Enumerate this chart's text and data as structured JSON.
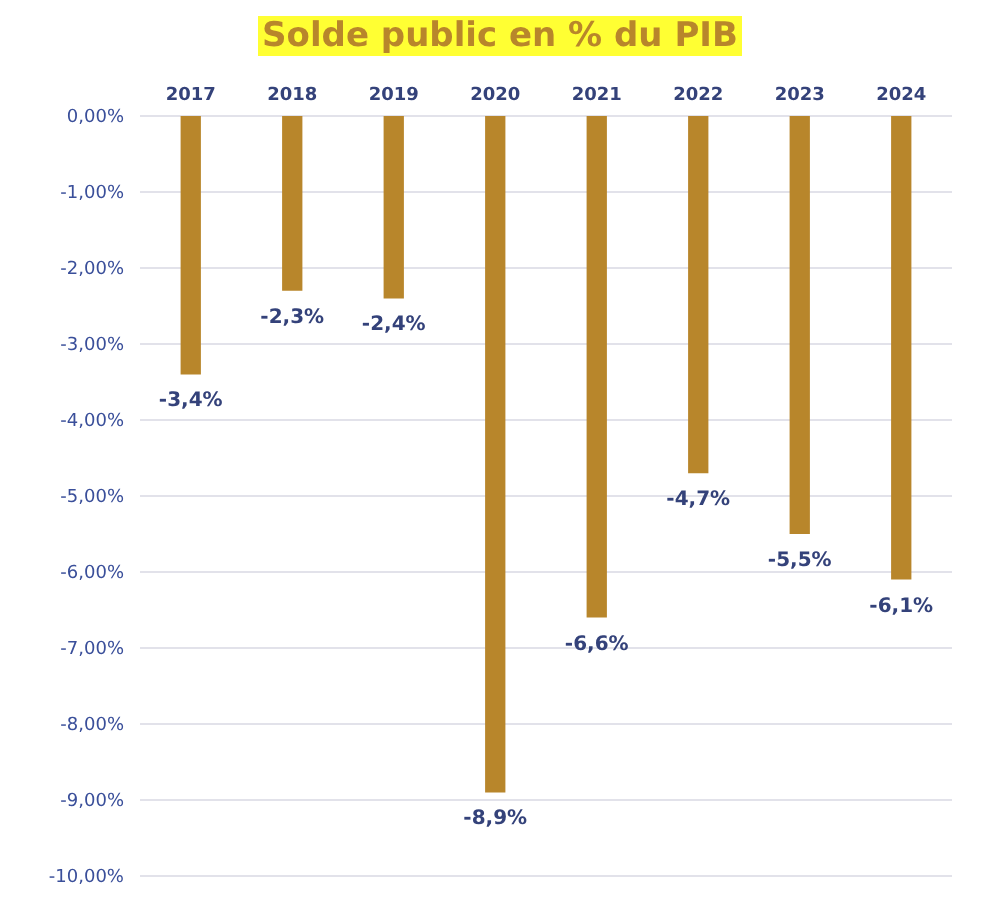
{
  "chart_data": {
    "type": "bar",
    "title": "Solde public en % du PIB",
    "categories": [
      "2017",
      "2018",
      "2019",
      "2020",
      "2021",
      "2022",
      "2023",
      "2024"
    ],
    "values": [
      -3.4,
      -2.3,
      -2.4,
      -8.9,
      -6.6,
      -4.7,
      -5.5,
      -6.1
    ],
    "value_labels": [
      "-3,4%",
      "-2,3%",
      "-2,4%",
      "-8,9%",
      "-6,6%",
      "-4,7%",
      "-5,5%",
      "-6,1%"
    ],
    "color": "#b8862b",
    "ylim": [
      -10,
      0
    ],
    "yticks": [
      {
        "value": 0,
        "label": "0,00%"
      },
      {
        "value": -1,
        "label": "-1,00%"
      },
      {
        "value": -2,
        "label": "-2,00%"
      },
      {
        "value": -3,
        "label": "-3,00%"
      },
      {
        "value": -4,
        "label": "-4,00%"
      },
      {
        "value": -5,
        "label": "-5,00%"
      },
      {
        "value": -6,
        "label": "-6,00%"
      },
      {
        "value": -7,
        "label": "-7,00%"
      },
      {
        "value": -8,
        "label": "-8,00%"
      },
      {
        "value": -9,
        "label": "-9,00%"
      },
      {
        "value": -10,
        "label": "-10,00%"
      }
    ],
    "grid": "y",
    "legend": false
  }
}
